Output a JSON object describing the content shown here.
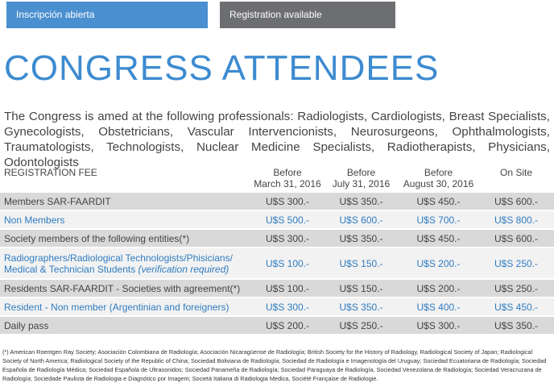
{
  "tabs": [
    {
      "label": "Inscripción abierta"
    },
    {
      "label": "Registration available"
    }
  ],
  "page_title": "CONGRESS ATTENDEES",
  "intro": "The Congress is amed at the following professionals: Radiologists, Cardiologists, Breast Specialists, Gynecologists, Obstetricians, Vascular Intervencionists, Neurosurgeons, Ophthalmologists, Traumatologists, Technologists, Nuclear Medicine Specialists, Radiotherapists, Physicians, Odontologists",
  "table": {
    "headers": {
      "category": "REGISTRATION FEE",
      "col1": {
        "line1": "Before",
        "line2": "March 31, 2016"
      },
      "col2": {
        "line1": "Before",
        "line2": "July 31, 2016"
      },
      "col3": {
        "line1": "Before",
        "line2": "August 30, 2016"
      },
      "col4": {
        "line1": "On Site",
        "line2": ""
      }
    },
    "rows": [
      {
        "category": "Members SAR-FAARDIT",
        "prices": [
          "U$S 300.-",
          "U$S 350.-",
          "U$S 450.-",
          "U$S 600.-"
        ]
      },
      {
        "category": "Non Members",
        "prices": [
          "U$S 500.-",
          "U$S 600.-",
          "U$S 700.-",
          "U$S 800.-"
        ]
      },
      {
        "category": "Society members of the following entities(*)",
        "prices": [
          "U$S 300.-",
          "U$S 350.-",
          "U$S 450.-",
          "U$S 600.-"
        ]
      },
      {
        "category_line1": "Radiographers/Radiological Technologists/Phisicians/",
        "category_line2": "Medical & Technician Students ",
        "category_note": "(verification required)",
        "prices": [
          "U$S 100.-",
          "U$S 150.-",
          "U$S 200.-",
          "U$S 250.-"
        ]
      },
      {
        "category": "Residents SAR-FAARDIT - Societies with agreement(*)",
        "prices": [
          "U$S 100.-",
          "U$S 150.-",
          "U$S 200.-",
          "U$S 250.-"
        ]
      },
      {
        "category": "Resident - Non member (Argentinian and foreigners)",
        "prices": [
          "U$S 300.-",
          "U$S 350.-",
          "U$S 400.-",
          "U$S 450.-"
        ]
      },
      {
        "category": "Daily pass",
        "prices": [
          "U$S 200.-",
          "U$S 250.-",
          "U$S 300.-",
          "U$S 350.-"
        ]
      }
    ]
  },
  "footnote": "(*) American Roentgen Ray Society; Asociación Colombiana de Radiología; Asociación Nicaragüense de Radiología; British Society for the History of Radiology, Radiological Society of Japan; Radiological Society of North America; Radiological Society of the Republic of China; Sociedad Boliviana de Radiología; Sociedad de Radiología e Imagenología del Uruguay; Sociedad Ecuatoriana de Radiología; Sociedad Española de Radiología Médica; Sociedad Española de Ultrasonidos; Sociedad Panameña de Radiología; Sociedad Paraguaya de Radiología, Sociedad Venezolana de Radiología; Sociedad Veracruzana de Radiología; Sociedade Paulista de Radiologia e Diagnótico por Imagem; Società Italiana di Radiologia Medica, Société Française de Radiologie.",
  "colors": {
    "tab_active": "#4a8fd0",
    "tab_inactive": "#6d6e71",
    "title": "#3d8bd0",
    "link_row": "#2f7cc0",
    "row_dark": "#d9d9d9",
    "row_light": "#f2f2f2"
  }
}
